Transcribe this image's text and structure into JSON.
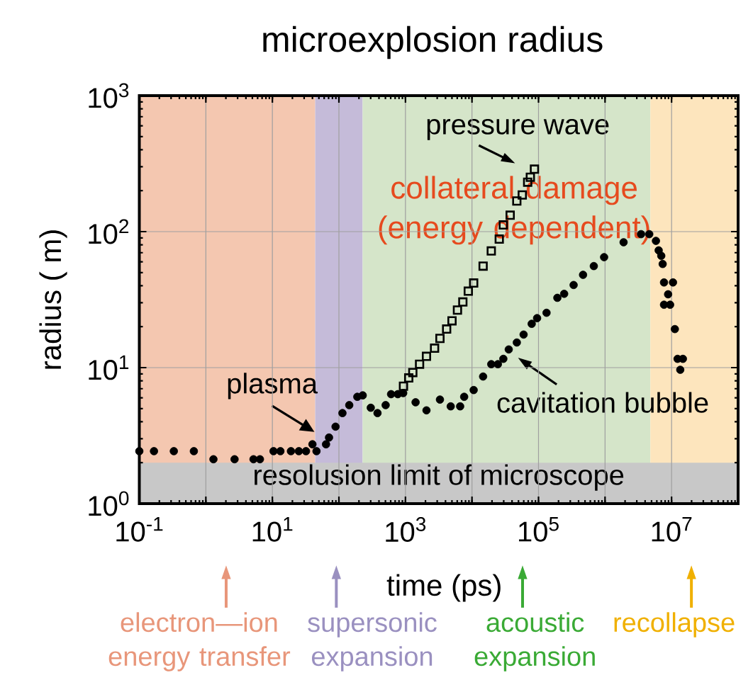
{
  "chart_data": {
    "type": "scatter",
    "title": "microexplosion radius",
    "xlabel": "time (ps)",
    "ylabel": "radius ( m)",
    "log": "xy",
    "grid": true,
    "xlim": [
      0.1,
      100000000
    ],
    "ylim": [
      1,
      1000
    ],
    "xticks": [
      {
        "value": 0.1,
        "label": "10$^{-1}$"
      },
      {
        "value": 1,
        "label": null
      },
      {
        "value": 10,
        "label": "10$^{1}$"
      },
      {
        "value": 100,
        "label": null
      },
      {
        "value": 1000,
        "label": "10$^{3}$"
      },
      {
        "value": 10000,
        "label": null
      },
      {
        "value": 100000,
        "label": "10$^{5}$"
      },
      {
        "value": 1000000,
        "label": null
      },
      {
        "value": 10000000,
        "label": "10$^{7}$"
      },
      {
        "value": 100000000,
        "label": null
      }
    ],
    "yticks": [
      {
        "value": 1,
        "label": "10$^{0}$"
      },
      {
        "value": 10,
        "label": "10$^{1}$"
      },
      {
        "value": 100,
        "label": "10$^{2}$"
      },
      {
        "value": 1000,
        "label": "10$^{3}$"
      }
    ],
    "series": [
      {
        "color": "#000000",
        "marker": "circle",
        "x": [
          0.1,
          0.166,
          0.33,
          0.66,
          1.3,
          2.7,
          5.2,
          6.5,
          10.4,
          13.2,
          19,
          25,
          32,
          40,
          46,
          64,
          71,
          89,
          113,
          143,
          189,
          228,
          301,
          380,
          504,
          608,
          768,
          925,
          1420,
          2070,
          3300,
          4790,
          6640,
          7630,
          10600,
          14700,
          19500,
          24500,
          29600,
          35700,
          47200,
          59700,
          79000,
          95200,
          132000,
          192000,
          243000,
          337000,
          467000,
          678000,
          968000,
          1900000,
          3480000,
          4620000,
          5820000,
          6400000,
          7000000,
          7350000,
          7700000,
          10500000,
          8870000,
          7700000,
          9500000,
          11200000,
          12300000,
          14800000,
          13500000
        ],
        "values": [
          2.43,
          2.43,
          2.43,
          2.43,
          2.12,
          2.12,
          2.12,
          2.12,
          2.43,
          2.43,
          2.43,
          2.43,
          2.43,
          2.73,
          2.43,
          2.73,
          3.06,
          3.68,
          4.63,
          5.3,
          6.1,
          6.25,
          5.07,
          4.63,
          5.3,
          6.38,
          6.38,
          6.5,
          5.56,
          4.85,
          5.82,
          5.19,
          5.19,
          6.1,
          6.84,
          8.6,
          10.6,
          10.6,
          11.6,
          13.6,
          15.3,
          17.5,
          21,
          23.1,
          25.3,
          32.6,
          34.9,
          40.5,
          48.1,
          55.8,
          64.9,
          83.5,
          95.8,
          95.8,
          85.5,
          72.8,
          66.4,
          57.8,
          42.3,
          42.3,
          34.6,
          29,
          29,
          19.2,
          11.6,
          11.6,
          9.64
        ]
      },
      {
        "color": "#000000",
        "marker": "square",
        "x": [
          934,
          1120,
          1290,
          1630,
          2070,
          2740,
          3300,
          4160,
          5010,
          6050,
          7290,
          8800,
          10600,
          14700,
          19500,
          25700,
          29600,
          37500,
          47200,
          57000,
          68700,
          75400,
          86900
        ],
        "values": [
          7.3,
          8.4,
          9.2,
          10.6,
          12.1,
          13.9,
          16.4,
          19.2,
          22.1,
          26.5,
          30.4,
          36.5,
          41.9,
          55.8,
          72.1,
          88.1,
          112,
          132,
          168,
          186,
          231,
          251,
          288
        ]
      }
    ],
    "bands": [
      {
        "axis": "x",
        "from": 0.1,
        "to": 44,
        "color": "#f4c7b0"
      },
      {
        "axis": "x",
        "from": 44,
        "to": 227,
        "color": "#c5bbd9"
      },
      {
        "axis": "x",
        "from": 227,
        "to": 4800000,
        "color": "#d5e5c9"
      },
      {
        "axis": "x",
        "from": 4800000,
        "to": 100000000,
        "color": "#fde5bd"
      },
      {
        "axis": "y",
        "from": 1,
        "to": 2,
        "label": "resolusion limit of microscope",
        "color": "#c8c8c8"
      }
    ],
    "annotations": [
      "pressure wave",
      "collateral damage (energy dependent)",
      {
        "text": "plasma",
        "x": 43,
        "y": 3.36
      },
      "cavitation bubble",
      "electron—ion energy transfer",
      "supersonic expansion",
      "acoustic expansion",
      "recollapse"
    ]
  }
}
